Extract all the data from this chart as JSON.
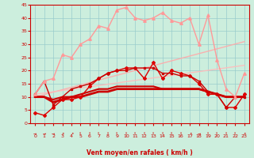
{
  "xlabel": "Vent moyen/en rafales ( km/h )",
  "background_color": "#cceedd",
  "grid_color": "#99cccc",
  "xlim": [
    -0.5,
    23.5
  ],
  "ylim": [
    0,
    45
  ],
  "yticks": [
    0,
    5,
    10,
    15,
    20,
    25,
    30,
    35,
    40,
    45
  ],
  "xticks": [
    0,
    1,
    2,
    3,
    4,
    5,
    6,
    7,
    8,
    9,
    10,
    11,
    12,
    13,
    14,
    15,
    16,
    17,
    18,
    19,
    20,
    21,
    22,
    23
  ],
  "series": [
    {
      "comment": "dark red line with diamond markers - rises then levels",
      "x": [
        0,
        1,
        2,
        3,
        4,
        5,
        6,
        7,
        8,
        9,
        10,
        11,
        12,
        13,
        14,
        15,
        16,
        17,
        18,
        19,
        20,
        21,
        22,
        23
      ],
      "y": [
        4,
        3,
        6,
        9,
        9,
        10,
        14,
        17,
        19,
        20,
        21,
        21,
        17,
        23,
        17,
        20,
        19,
        18,
        15,
        11,
        11,
        6,
        6,
        11
      ],
      "color": "#dd0000",
      "lw": 1.0,
      "marker": "D",
      "ms": 2.0,
      "alpha": 1.0,
      "zorder": 4
    },
    {
      "comment": "dark red thick line - nearly flat around 10",
      "x": [
        0,
        1,
        2,
        3,
        4,
        5,
        6,
        7,
        8,
        9,
        10,
        11,
        12,
        13,
        14,
        15,
        16,
        17,
        18,
        19,
        20,
        21,
        22,
        23
      ],
      "y": [
        10,
        10,
        8,
        9,
        10,
        10,
        11,
        12,
        12,
        13,
        13,
        13,
        13,
        13,
        13,
        13,
        13,
        13,
        13,
        12,
        11,
        10,
        10,
        10
      ],
      "color": "#cc0000",
      "lw": 2.0,
      "marker": null,
      "ms": 0,
      "alpha": 1.0,
      "zorder": 3
    },
    {
      "comment": "dark red line - nearly flat around 11",
      "x": [
        0,
        1,
        2,
        3,
        4,
        5,
        6,
        7,
        8,
        9,
        10,
        11,
        12,
        13,
        14,
        15,
        16,
        17,
        18,
        19,
        20,
        21,
        22,
        23
      ],
      "y": [
        10,
        10,
        9,
        10,
        10,
        11,
        12,
        13,
        13,
        14,
        14,
        14,
        14,
        14,
        13,
        13,
        13,
        13,
        13,
        12,
        11,
        10,
        10,
        10
      ],
      "color": "#cc0000",
      "lw": 1.5,
      "marker": null,
      "ms": 0,
      "alpha": 1.0,
      "zorder": 3
    },
    {
      "comment": "medium red line with small markers",
      "x": [
        0,
        1,
        2,
        3,
        4,
        5,
        6,
        7,
        8,
        9,
        10,
        11,
        12,
        13,
        14,
        15,
        16,
        17,
        18,
        19,
        20,
        21,
        22,
        23
      ],
      "y": [
        11,
        16,
        7,
        10,
        13,
        14,
        15,
        17,
        19,
        20,
        20,
        21,
        21,
        21,
        19,
        19,
        18,
        18,
        16,
        12,
        11,
        6,
        10,
        10
      ],
      "color": "#cc0000",
      "lw": 1.0,
      "marker": "s",
      "ms": 1.8,
      "alpha": 1.0,
      "zorder": 4
    },
    {
      "comment": "pink/light red line with triangle markers - high values",
      "x": [
        0,
        1,
        2,
        3,
        4,
        5,
        6,
        7,
        8,
        9,
        10,
        11,
        12,
        13,
        14,
        15,
        16,
        17,
        18,
        19,
        20,
        21,
        22,
        23
      ],
      "y": [
        11,
        16,
        17,
        26,
        25,
        30,
        32,
        37,
        36,
        43,
        44,
        40,
        39,
        40,
        42,
        39,
        38,
        40,
        30,
        41,
        24,
        13,
        10,
        19
      ],
      "color": "#ff9999",
      "lw": 1.0,
      "marker": "^",
      "ms": 2.5,
      "alpha": 1.0,
      "zorder": 4
    },
    {
      "comment": "light diagonal trend line going up",
      "x": [
        0,
        23
      ],
      "y": [
        10,
        31
      ],
      "color": "#ffaaaa",
      "lw": 1.0,
      "marker": null,
      "ms": 0,
      "alpha": 0.9,
      "zorder": 2
    },
    {
      "comment": "lighter diagonal trend line - lower slope",
      "x": [
        0,
        23
      ],
      "y": [
        11,
        22
      ],
      "color": "#ffbbbb",
      "lw": 1.0,
      "marker": null,
      "ms": 0,
      "alpha": 0.9,
      "zorder": 2
    }
  ],
  "wind_arrows": [
    "→",
    "→",
    "→",
    "↗",
    "↗",
    "↑",
    "↑",
    "↑",
    "↑",
    "↑",
    "↑",
    "↑",
    "↑",
    "↑",
    "↑",
    "↑",
    "↑",
    "↗",
    "→",
    "↑",
    "↑",
    "↑",
    "↑",
    "↗"
  ]
}
